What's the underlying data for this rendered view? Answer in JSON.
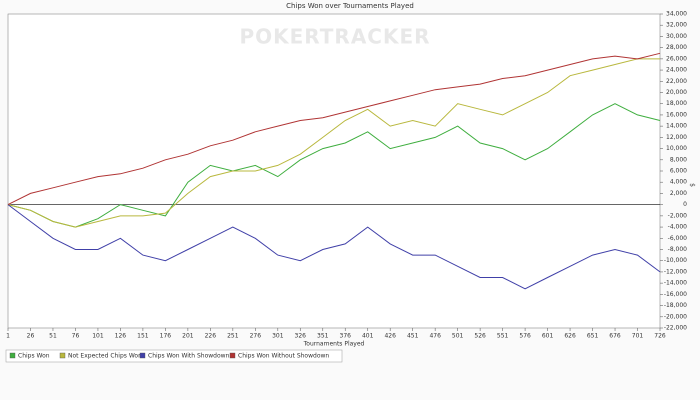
{
  "chart_data": {
    "type": "line",
    "title": "Chips Won over Tournaments Played",
    "watermark": "POKERTRACKER",
    "xlabel": "Tournaments Played",
    "ylabel": "$",
    "x": [
      1,
      26,
      51,
      76,
      101,
      126,
      151,
      176,
      201,
      226,
      251,
      276,
      301,
      326,
      351,
      376,
      401,
      426,
      451,
      476,
      501,
      526,
      551,
      576,
      601,
      626,
      651,
      676,
      701,
      726
    ],
    "series": [
      {
        "name": "Chips Won",
        "color": "#3fae3f",
        "values": [
          0,
          -1000,
          -3000,
          -4000,
          -2500,
          0,
          -1000,
          -2000,
          4000,
          7000,
          6000,
          7000,
          5000,
          8000,
          10000,
          11000,
          13000,
          10000,
          11000,
          12000,
          14000,
          11000,
          10000,
          8000,
          10000,
          13000,
          16000,
          18000,
          16000,
          15000
        ]
      },
      {
        "name": "Not Expected Chips Won",
        "color": "#b9b83e",
        "values": [
          0,
          -1000,
          -3000,
          -4000,
          -3000,
          -2000,
          -2000,
          -1500,
          2000,
          5000,
          6000,
          6000,
          7000,
          9000,
          12000,
          15000,
          17000,
          14000,
          15000,
          14000,
          18000,
          17000,
          16000,
          18000,
          20000,
          23000,
          24000,
          25000,
          26000,
          26000
        ]
      },
      {
        "name": "Chips Won With Showdown",
        "color": "#4040a8",
        "values": [
          0,
          -3000,
          -6000,
          -8000,
          -8000,
          -6000,
          -9000,
          -10000,
          -8000,
          -6000,
          -4000,
          -6000,
          -9000,
          -10000,
          -8000,
          -7000,
          -4000,
          -7000,
          -9000,
          -9000,
          -11000,
          -13000,
          -13000,
          -15000,
          -13000,
          -11000,
          -9000,
          -8000,
          -9000,
          -12000
        ]
      },
      {
        "name": "Chips Won Without Showdown",
        "color": "#b03434",
        "values": [
          0,
          2000,
          3000,
          4000,
          5000,
          5500,
          6500,
          8000,
          9000,
          10500,
          11500,
          13000,
          14000,
          15000,
          15500,
          16500,
          17500,
          18500,
          19500,
          20500,
          21000,
          21500,
          22500,
          23000,
          24000,
          25000,
          26000,
          26500,
          26000,
          27000
        ]
      }
    ],
    "xlim": [
      1,
      726
    ],
    "xticks": [
      1,
      26,
      51,
      76,
      101,
      126,
      151,
      176,
      201,
      226,
      251,
      276,
      301,
      326,
      351,
      376,
      401,
      426,
      451,
      476,
      501,
      526,
      551,
      576,
      601,
      626,
      651,
      676,
      701,
      726
    ],
    "ylim": [
      -22000,
      34000
    ],
    "yticks": [
      {
        "value": -22000,
        "label": "-22,000"
      },
      {
        "value": -20000,
        "label": "-20,000"
      },
      {
        "value": -18000,
        "label": "-18,000"
      },
      {
        "value": -16000,
        "label": "-16,000"
      },
      {
        "value": -14000,
        "label": "-14,000"
      },
      {
        "value": -12000,
        "label": "-12,000"
      },
      {
        "value": -10000,
        "label": "-10,000"
      },
      {
        "value": -8000,
        "label": "-8,000"
      },
      {
        "value": -6000,
        "label": "-6,000"
      },
      {
        "value": -4000,
        "label": "-4,000"
      },
      {
        "value": -2000,
        "label": "-2,000"
      },
      0,
      {
        "value": 2000,
        "label": "2,000"
      },
      {
        "value": 4000,
        "label": "4,000"
      },
      {
        "value": 6000,
        "label": "6,000"
      },
      {
        "value": 8000,
        "label": "8,000"
      },
      {
        "value": 10000,
        "label": "10,000"
      },
      {
        "value": 12000,
        "label": "12,000"
      },
      {
        "value": 14000,
        "label": "14,000"
      },
      {
        "value": 16000,
        "label": "16,000"
      },
      {
        "value": 18000,
        "label": "18,000"
      },
      {
        "value": 20000,
        "label": "20,000"
      },
      {
        "value": 22000,
        "label": "22,000"
      },
      {
        "value": 24000,
        "label": "24,000"
      },
      {
        "value": 26000,
        "label": "26,000"
      },
      {
        "value": 28000,
        "label": "28,000"
      },
      {
        "value": 30000,
        "label": "30,000"
      },
      {
        "value": 32000,
        "label": "32,000"
      },
      {
        "value": 34000,
        "label": "34,000"
      }
    ],
    "legend": "bottom"
  }
}
